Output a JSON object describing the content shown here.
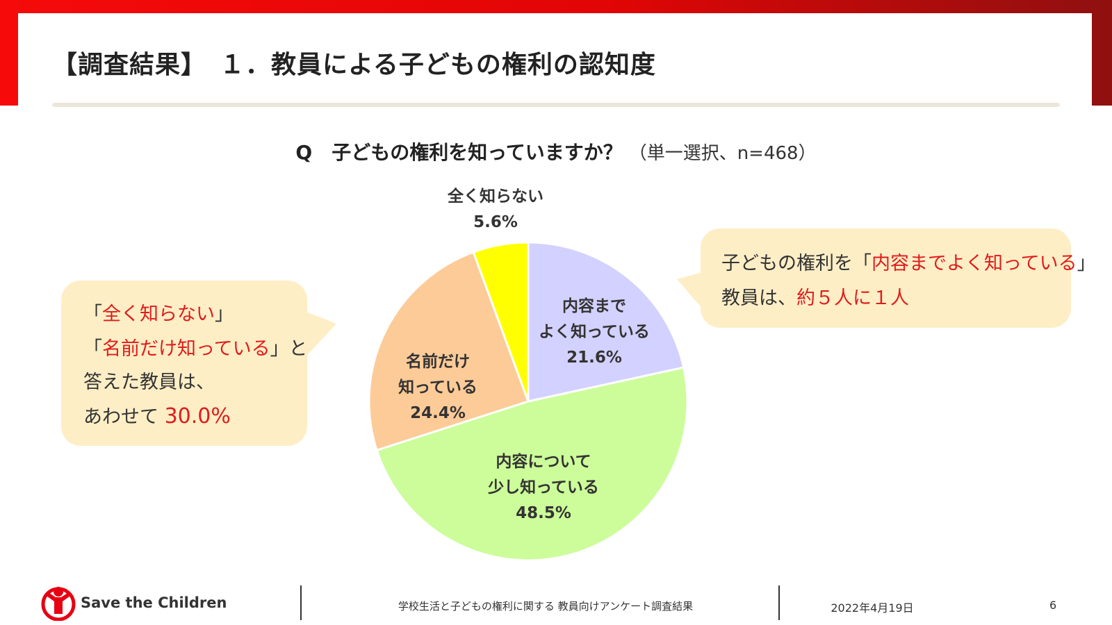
{
  "header": {
    "title": "【調査結果】　１．教員による子どもの権利の認知度"
  },
  "question": {
    "main": "Q　子どもの権利を知っていますか？",
    "note": "（単一選択、n=468）"
  },
  "chart_data": {
    "type": "pie",
    "start": "12 o'clock, clockwise",
    "slices": [
      {
        "label": [
          "内容まで",
          "よく知っている"
        ],
        "value": 21.6,
        "value_label": "21.6%",
        "color": "#d3d1ff"
      },
      {
        "label": [
          "内容について",
          "少し知っている"
        ],
        "value": 48.5,
        "value_label": "48.5%",
        "color": "#ccfd9a"
      },
      {
        "label": [
          "名前だけ",
          "知っている"
        ],
        "value": 24.4,
        "value_label": "24.4%",
        "color": "#fdcb98"
      },
      {
        "label": [
          "全く知らない"
        ],
        "value": 5.6,
        "value_label": "5.6%",
        "color": "#ffff00"
      }
    ]
  },
  "callout_left": {
    "line1": {
      "open": "「",
      "red": "全く知らない",
      "close": "」"
    },
    "line2": {
      "open": "「",
      "red": "名前だけ知っている",
      "close": "」と"
    },
    "line3": "答えた教員は、",
    "line4": {
      "text": "あわせて ",
      "red": "30.0%"
    }
  },
  "callout_right": {
    "line1": {
      "text": "子どもの権利を「",
      "red": "内容までよく知っている",
      "close": "」"
    },
    "line2": {
      "text": "教員は、",
      "red": "約５人に１人"
    }
  },
  "footer": {
    "brand": "Save the Children",
    "center": "学校生活と子どもの権利に関する 教員向けアンケート調査結果",
    "date": "2022年4月19日",
    "page": "6"
  },
  "colors": {
    "brand_red": "#e60012",
    "highlight_red": "#e01b1b",
    "callout_bg": "#fdeec6"
  }
}
